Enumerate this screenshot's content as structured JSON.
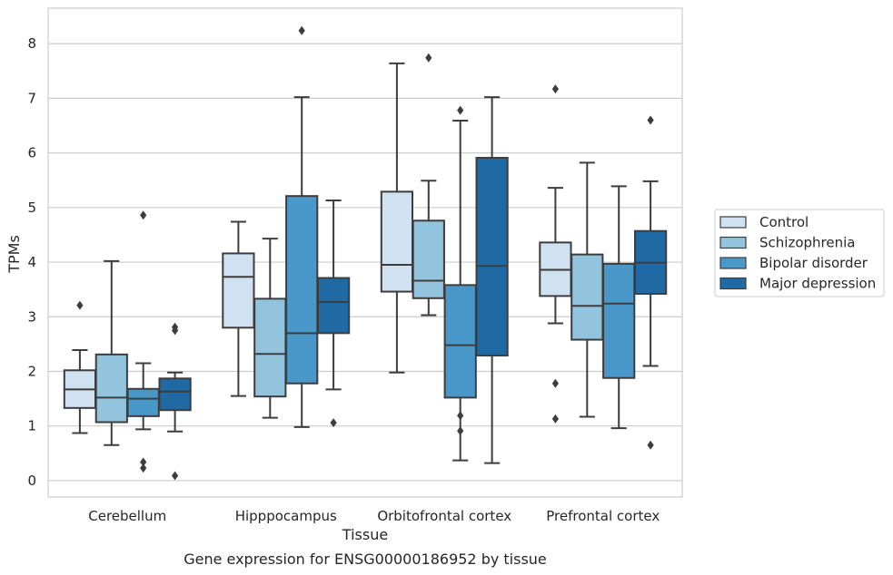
{
  "chart_data": {
    "type": "boxplot",
    "xlabel": "Tissue",
    "ylabel": "TPMs",
    "caption": "Gene expression for ENSG00000186952 by tissue",
    "ylim": [
      -0.3,
      8.65
    ],
    "yticks": [
      0,
      1,
      2,
      3,
      4,
      5,
      6,
      7,
      8
    ],
    "grid": "horizontal",
    "legend_position": "right",
    "categories": [
      "Cerebellum",
      "Hipppocampus",
      "Orbitofrontal cortex",
      "Prefrontal cortex"
    ],
    "series": [
      {
        "name": "Control",
        "color": "#d0e1f2",
        "boxes": [
          {
            "whislo": 0.87,
            "q1": 1.33,
            "med": 1.67,
            "q3": 2.02,
            "whishi": 2.39,
            "fliers": [
              3.21
            ]
          },
          {
            "whislo": 1.55,
            "q1": 2.8,
            "med": 3.73,
            "q3": 4.16,
            "whishi": 4.74,
            "fliers": []
          },
          {
            "whislo": 1.98,
            "q1": 3.46,
            "med": 3.95,
            "q3": 5.29,
            "whishi": 7.64,
            "fliers": []
          },
          {
            "whislo": 2.88,
            "q1": 3.38,
            "med": 3.86,
            "q3": 4.36,
            "whishi": 5.36,
            "fliers": [
              1.78,
              1.13,
              7.17
            ]
          }
        ]
      },
      {
        "name": "Schizophrenia",
        "color": "#93c4de",
        "boxes": [
          {
            "whislo": 0.65,
            "q1": 1.07,
            "med": 1.52,
            "q3": 2.31,
            "whishi": 4.02,
            "fliers": []
          },
          {
            "whislo": 1.15,
            "q1": 1.54,
            "med": 2.32,
            "q3": 3.33,
            "whishi": 4.43,
            "fliers": []
          },
          {
            "whislo": 3.03,
            "q1": 3.34,
            "med": 3.66,
            "q3": 4.76,
            "whishi": 5.49,
            "fliers": [
              7.74
            ]
          },
          {
            "whislo": 1.17,
            "q1": 2.58,
            "med": 3.2,
            "q3": 4.14,
            "whishi": 5.82,
            "fliers": []
          }
        ]
      },
      {
        "name": "Bipolar disorder",
        "color": "#4a98c9",
        "boxes": [
          {
            "whislo": 0.94,
            "q1": 1.18,
            "med": 1.5,
            "q3": 1.68,
            "whishi": 2.15,
            "fliers": [
              4.86,
              0.34,
              0.23
            ]
          },
          {
            "whislo": 0.98,
            "q1": 1.78,
            "med": 2.7,
            "q3": 5.21,
            "whishi": 7.02,
            "fliers": [
              8.24
            ]
          },
          {
            "whislo": 0.37,
            "q1": 1.52,
            "med": 2.48,
            "q3": 3.58,
            "whishi": 6.59,
            "fliers": [
              6.78,
              1.19,
              0.91
            ]
          },
          {
            "whislo": 0.96,
            "q1": 1.88,
            "med": 3.24,
            "q3": 3.97,
            "whishi": 5.39,
            "fliers": []
          }
        ]
      },
      {
        "name": "Major depression",
        "color": "#1f6aa5",
        "boxes": [
          {
            "whislo": 0.9,
            "q1": 1.29,
            "med": 1.63,
            "q3": 1.87,
            "whishi": 1.98,
            "fliers": [
              2.81,
              2.75,
              0.09
            ]
          },
          {
            "whislo": 1.67,
            "q1": 2.7,
            "med": 3.27,
            "q3": 3.71,
            "whishi": 5.13,
            "fliers": [
              1.06
            ]
          },
          {
            "whislo": 0.32,
            "q1": 2.29,
            "med": 3.93,
            "q3": 5.91,
            "whishi": 7.02,
            "fliers": []
          },
          {
            "whislo": 2.1,
            "q1": 3.42,
            "med": 3.99,
            "q3": 4.57,
            "whishi": 5.48,
            "fliers": [
              6.6,
              0.65
            ]
          }
        ]
      }
    ]
  }
}
